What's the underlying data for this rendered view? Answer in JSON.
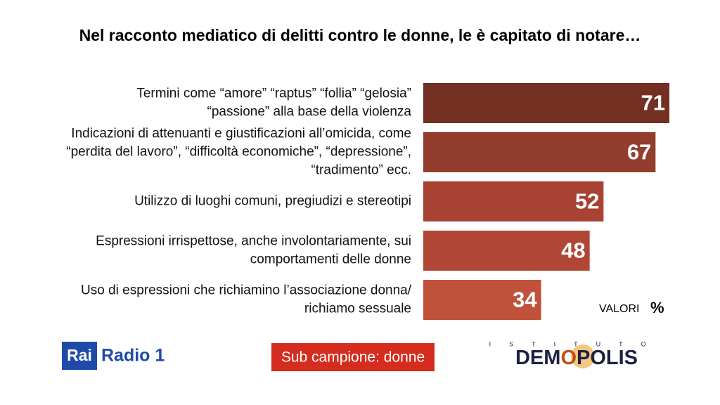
{
  "chart_data": {
    "type": "bar",
    "orientation": "horizontal",
    "title": "Nel racconto mediatico di delitti contro le donne, le è capitato di notare…",
    "categories": [
      [
        "Termini come “amore” “raptus” “follia” “gelosia”",
        "“passione” alla base della violenza"
      ],
      [
        "Indicazioni di attenuanti e giustificazioni all’omicida, come",
        "“perdita del lavoro”, “difficoltà economiche”, “depressione”,",
        "“tradimento” ecc."
      ],
      [
        "Utilizzo di luoghi comuni, pregiudizi e stereotipi"
      ],
      [
        "Espressioni irrispettose, anche involontariamente, sui",
        "comportamenti delle donne"
      ],
      [
        "Uso di espressioni che richiamino l’associazione donna/",
        "richiamo sessuale"
      ]
    ],
    "values": [
      71,
      67,
      52,
      48,
      34
    ],
    "colors": [
      "#722f22",
      "#923d2d",
      "#a84232",
      "#b04734",
      "#c0523b"
    ],
    "unit_note": "VALORI",
    "unit": "%",
    "note": "Sub campione: donne",
    "logos": {
      "rai": "Rai",
      "radio": "Radio 1",
      "istituto": "ISTITUTO",
      "demopolis": [
        "DEM",
        "O",
        "POLIS"
      ]
    }
  }
}
